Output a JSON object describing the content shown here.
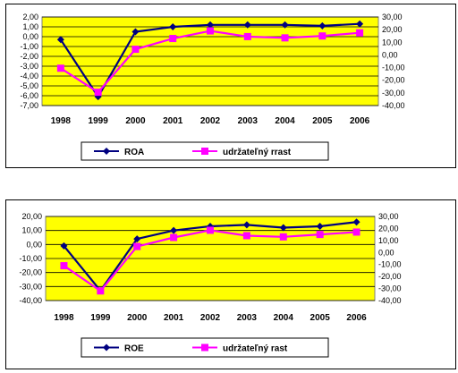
{
  "chart_data": [
    {
      "type": "line",
      "categories": [
        "1998",
        "1999",
        "2000",
        "2001",
        "2002",
        "2003",
        "2004",
        "2005",
        "2006"
      ],
      "series": [
        {
          "name": "ROA",
          "axis": "left",
          "color": "#000080",
          "marker": "diamond",
          "values": [
            -0.3,
            -6.1,
            0.5,
            1.0,
            1.2,
            1.2,
            1.2,
            1.1,
            1.3
          ]
        },
        {
          "name": "udržateľný rrast",
          "axis": "right",
          "color": "#ff00ff",
          "marker": "square",
          "values": [
            -10.5,
            -29.5,
            4.5,
            13.0,
            19.0,
            14.5,
            13.5,
            15.0,
            17.5
          ]
        }
      ],
      "y_left": {
        "min": -7,
        "max": 2,
        "ticks": [
          "2,00",
          "1,00",
          "0,00",
          "-1,00",
          "-2,00",
          "-3,00",
          "-4,00",
          "-5,00",
          "-6,00",
          "-7,00"
        ]
      },
      "y_right": {
        "min": -40,
        "max": 30,
        "ticks": [
          "30,00",
          "20,00",
          "10,00",
          "0,00",
          "-10,00",
          "-20,00",
          "-30,00",
          "-40,00"
        ]
      },
      "plot_background": "#ffff00",
      "grid": true,
      "legend_position": "bottom"
    },
    {
      "type": "line",
      "categories": [
        "1998",
        "1999",
        "2000",
        "2001",
        "2002",
        "2003",
        "2004",
        "2005",
        "2006"
      ],
      "series": [
        {
          "name": "ROE",
          "axis": "left",
          "color": "#000080",
          "marker": "diamond",
          "values": [
            -1.0,
            -33.0,
            4.0,
            10.0,
            13.0,
            14.0,
            12.0,
            13.0,
            16.0
          ]
        },
        {
          "name": "udržateľný rast",
          "axis": "right",
          "color": "#ff00ff",
          "marker": "square",
          "values": [
            -11.0,
            -32.0,
            5.0,
            12.5,
            18.5,
            14.0,
            13.0,
            15.0,
            17.0
          ]
        }
      ],
      "y_left": {
        "min": -40,
        "max": 20,
        "ticks": [
          "20,00",
          "10,00",
          "0,00",
          "-10,00",
          "-20,00",
          "-30,00",
          "-40,00"
        ]
      },
      "y_right": {
        "min": -40,
        "max": 30,
        "ticks": [
          "30,00",
          "20,00",
          "10,00",
          "0,00",
          "-10,00",
          "-20,00",
          "-30,00",
          "-40,00"
        ]
      },
      "plot_background": "#ffff00",
      "grid": true,
      "legend_position": "bottom"
    }
  ]
}
